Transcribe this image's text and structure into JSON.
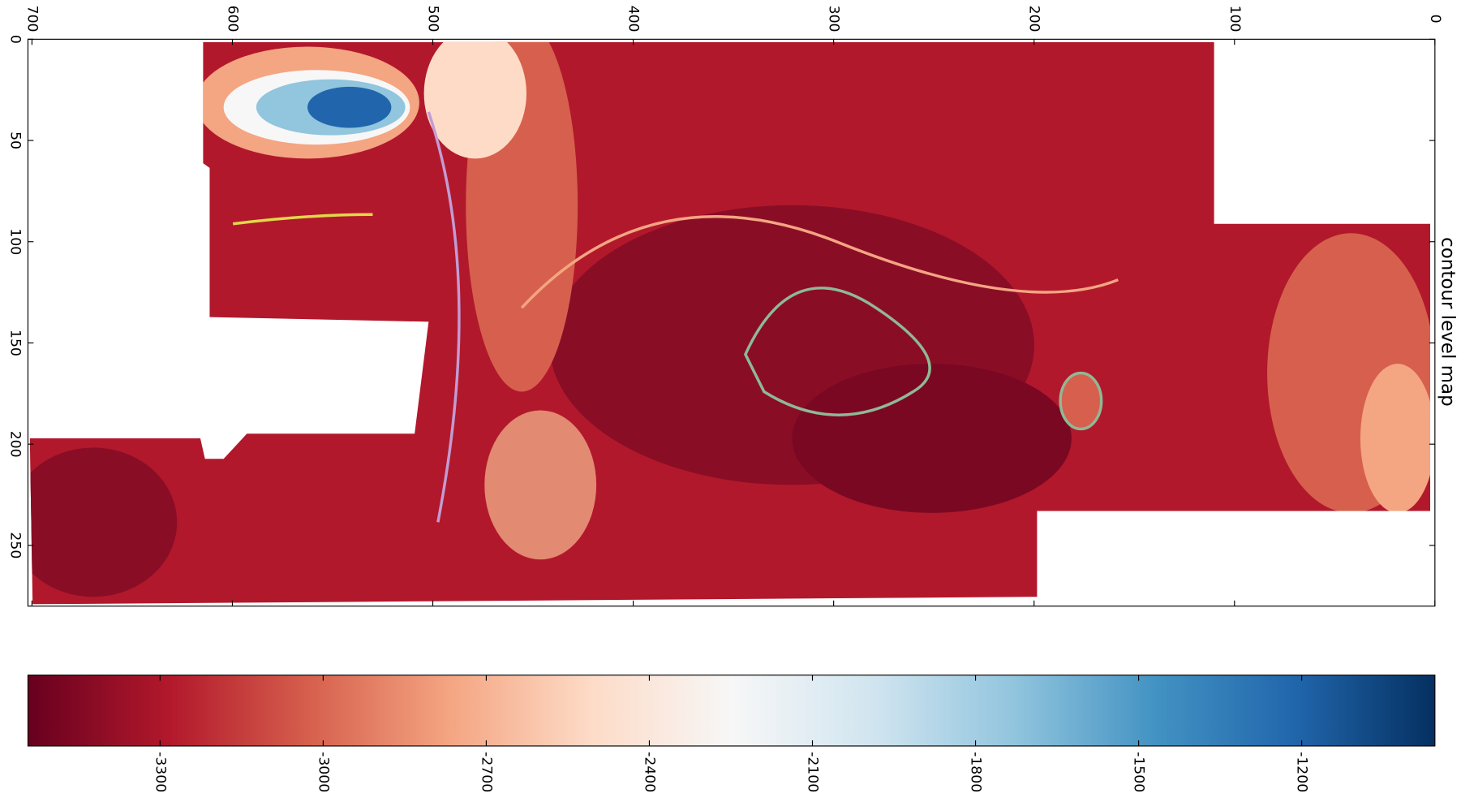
{
  "chart_data": {
    "type": "heatmap",
    "title": "contour level map",
    "xlim": [
      702,
      0
    ],
    "xticks": [
      700,
      600,
      500,
      400,
      300,
      200,
      100,
      0
    ],
    "ylim": [
      0,
      280
    ],
    "yticks": [
      0,
      50,
      100,
      150,
      200,
      250
    ],
    "colorbar": {
      "clim": [
        -3543,
        -955
      ],
      "ticks": [
        -3300,
        -3000,
        -2700,
        -2400,
        -2100,
        -1800,
        -1500,
        -1200
      ],
      "colors": [
        "#67001f",
        "#b2182b",
        "#d6604d",
        "#f4a582",
        "#fddbc7",
        "#f7f7f7",
        "#d1e5f0",
        "#92c5de",
        "#4393c3",
        "#2166ac",
        "#053061"
      ]
    }
  }
}
